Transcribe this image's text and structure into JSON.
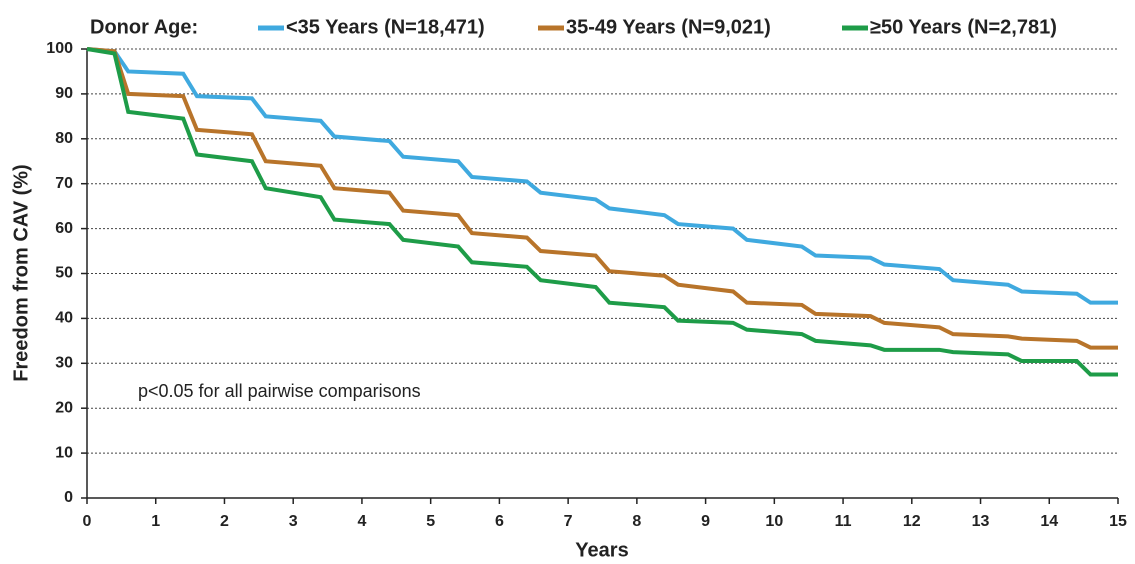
{
  "chart_data": {
    "type": "line",
    "legend_title": "Donor Age:",
    "ylabel": "Freedom from CAV (%)",
    "xlabel": "Years",
    "annotation": "p<0.05 for all pairwise comparisons",
    "x": [
      0,
      0.4,
      0.6,
      1.4,
      1.6,
      2.4,
      2.6,
      3.4,
      3.6,
      4.4,
      4.6,
      5.4,
      5.6,
      6.4,
      6.6,
      7.4,
      7.6,
      8.4,
      8.6,
      9.4,
      9.6,
      10.4,
      10.6,
      11.4,
      11.6,
      12.4,
      12.6,
      13.4,
      13.6,
      14.4,
      14.6,
      15
    ],
    "series": [
      {
        "name": "<35 Years (N=18,471)",
        "color": "#3fa9df",
        "values": [
          100,
          99.5,
          95,
          94.5,
          89.5,
          89,
          85,
          84,
          80.5,
          79.5,
          76,
          75,
          71.5,
          70.5,
          68,
          66.5,
          64.5,
          63,
          61,
          60,
          57.5,
          56,
          54,
          53.5,
          52,
          51,
          48.5,
          47.5,
          46,
          45.5,
          43.5,
          43.5
        ]
      },
      {
        "name": "35-49 Years (N=9,021)",
        "color": "#b8742a",
        "values": [
          100,
          99.5,
          90,
          89.5,
          82,
          81,
          75,
          74,
          69,
          68,
          64,
          63,
          59,
          58,
          55,
          54,
          50.5,
          49.5,
          47.5,
          46,
          43.5,
          43,
          41,
          40.5,
          39,
          38,
          36.5,
          36,
          35.5,
          35,
          33.5,
          33.5
        ]
      },
      {
        "name": "≥50 Years (N=2,781)",
        "color": "#1e9c48",
        "values": [
          100,
          99,
          86,
          84.5,
          76.5,
          75,
          69,
          67,
          62,
          61,
          57.5,
          56,
          52.5,
          51.5,
          48.5,
          47,
          43.5,
          42.5,
          39.5,
          39,
          37.5,
          36.5,
          35,
          34,
          33,
          33,
          32.5,
          32,
          30.5,
          30.5,
          27.5,
          27.5
        ]
      }
    ],
    "xlim": [
      0,
      15
    ],
    "xticks": [
      0,
      1,
      2,
      3,
      4,
      5,
      6,
      7,
      8,
      9,
      10,
      11,
      12,
      13,
      14,
      15
    ],
    "ylim": [
      0,
      100
    ],
    "yticks": [
      0,
      10,
      20,
      30,
      40,
      50,
      60,
      70,
      80,
      90,
      100
    ],
    "grid": true
  }
}
